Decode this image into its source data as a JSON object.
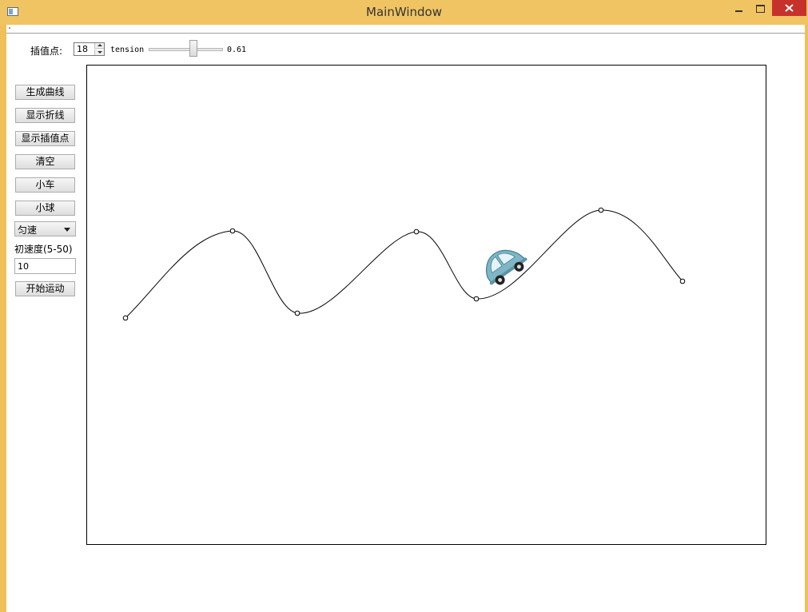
{
  "window": {
    "title": "MainWindow"
  },
  "toolbar": {
    "interp_label": "插值点:",
    "interp_value": "18",
    "tension_label": "tension",
    "tension_value_text": "0.61",
    "tension_fraction": 0.61
  },
  "sidebar": {
    "buttons": [
      "生成曲线",
      "显示折线",
      "显示插值点",
      "清空",
      "小车",
      "小球"
    ],
    "motion_mode": "匀速",
    "speed_label": "初速度(5-50)",
    "speed_value": "10",
    "start_button": "开始运动"
  },
  "colors": {
    "titlebar": "#f1c463",
    "close_button": "#c7312c",
    "car_body": "#7fb6c6"
  },
  "icons": [
    "app-icon",
    "minimize-icon",
    "maximize-icon",
    "close-icon",
    "car-icon"
  ]
}
